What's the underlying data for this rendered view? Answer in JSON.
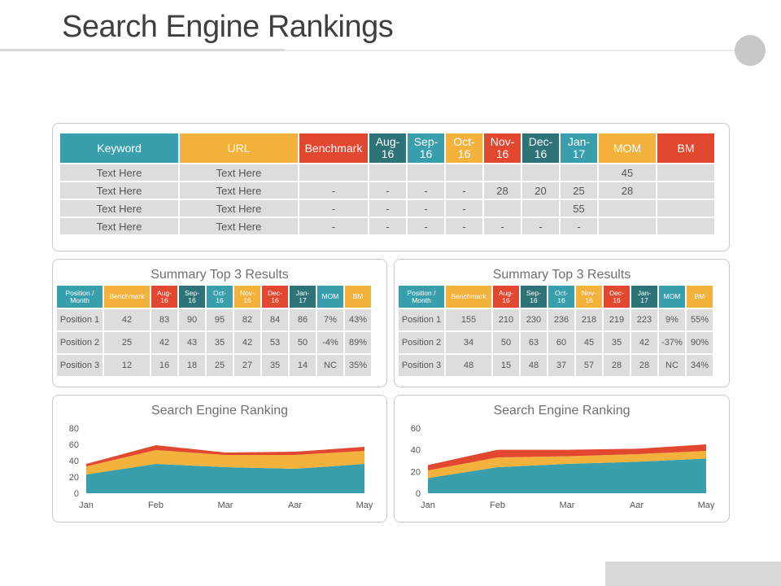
{
  "page": {
    "title": "Search Engine Rankings"
  },
  "main_table": {
    "headers": [
      {
        "label": "Keyword",
        "color": "teal"
      },
      {
        "label": "URL",
        "color": "yellow"
      },
      {
        "label": "Benchmark",
        "color": "red"
      },
      {
        "label": "Aug-\n16",
        "color": "dteal"
      },
      {
        "label": "Sep-\n16",
        "color": "teal"
      },
      {
        "label": "Oct-\n16",
        "color": "yellow"
      },
      {
        "label": "Nov-\n16",
        "color": "red"
      },
      {
        "label": "Dec-\n16",
        "color": "dteal"
      },
      {
        "label": "Jan-\n17",
        "color": "teal"
      },
      {
        "label": "MOM",
        "color": "yellow"
      },
      {
        "label": "BM",
        "color": "red"
      }
    ],
    "rows": [
      [
        "Text Here",
        "Text Here",
        "",
        "",
        "",
        "",
        "",
        "",
        "",
        "45",
        ""
      ],
      [
        "Text Here",
        "Text Here",
        "-",
        "-",
        "-",
        "-",
        "28",
        "20",
        "25",
        "28",
        ""
      ],
      [
        "Text Here",
        "Text Here",
        "-",
        "-",
        "-",
        "-",
        "",
        "",
        "55",
        "",
        ""
      ],
      [
        "Text Here",
        "Text Here",
        "-",
        "-",
        "-",
        "-",
        "-",
        "-",
        "-",
        "",
        ""
      ]
    ]
  },
  "summary_tables": [
    {
      "title": "Summary Top 3 Results",
      "headers": [
        {
          "label": "Position /\nMonth",
          "color": "teal"
        },
        {
          "label": "Benchmark",
          "color": "yellow"
        },
        {
          "label": "Aug-\n16",
          "color": "red"
        },
        {
          "label": "Sep-\n16",
          "color": "dteal"
        },
        {
          "label": "Oct-\n16",
          "color": "teal"
        },
        {
          "label": "Nov-\n16",
          "color": "yellow"
        },
        {
          "label": "Dec-\n16",
          "color": "red"
        },
        {
          "label": "Jan-\n17",
          "color": "dteal"
        },
        {
          "label": "MOM",
          "color": "teal"
        },
        {
          "label": "BM",
          "color": "yellow"
        }
      ],
      "rows": [
        [
          "Position 1",
          "42",
          "83",
          "90",
          "95",
          "82",
          "84",
          "86",
          "7%",
          "43%"
        ],
        [
          "Position 2",
          "25",
          "42",
          "43",
          "35",
          "42",
          "53",
          "50",
          "-4%",
          "89%"
        ],
        [
          "Position 3",
          "12",
          "16",
          "18",
          "25",
          "27",
          "35",
          "14",
          "NC",
          "35%"
        ]
      ]
    },
    {
      "title": "Summary Top 3 Results",
      "headers": [
        {
          "label": "Position /\nMonth",
          "color": "teal"
        },
        {
          "label": "Benchmark",
          "color": "yellow"
        },
        {
          "label": "Aug-\n16",
          "color": "red"
        },
        {
          "label": "Sep-\n16",
          "color": "dteal"
        },
        {
          "label": "Oct-\n16",
          "color": "teal"
        },
        {
          "label": "Nov-\n16",
          "color": "yellow"
        },
        {
          "label": "Dec-\n16",
          "color": "red"
        },
        {
          "label": "Jan-\n17",
          "color": "dteal"
        },
        {
          "label": "MOM",
          "color": "teal"
        },
        {
          "label": "BM",
          "color": "yellow"
        }
      ],
      "rows": [
        [
          "Position 1",
          "155",
          "210",
          "230",
          "236",
          "218",
          "219",
          "223",
          "9%",
          "55%"
        ],
        [
          "Position 2",
          "34",
          "50",
          "63",
          "60",
          "45",
          "35",
          "42",
          "-37%",
          "90%"
        ],
        [
          "Position 3",
          "48",
          "15",
          "48",
          "37",
          "57",
          "28",
          "28",
          "NC",
          "34%"
        ]
      ]
    }
  ],
  "colors": {
    "teal": "#3a9fac",
    "yellow": "#f2b23c",
    "red": "#e2472f",
    "dteal": "#2e7377"
  },
  "chart_data": [
    {
      "type": "area",
      "stacked": true,
      "title": "Search Engine Ranking",
      "categories": [
        "Jan",
        "Feb",
        "Mar",
        "Aar",
        "May"
      ],
      "ylim": [
        0,
        80
      ],
      "yticks": [
        0,
        20,
        40,
        60,
        80
      ],
      "grid": false,
      "series": [
        {
          "color": "#3a9fac",
          "values": [
            23,
            36,
            32,
            30,
            36
          ]
        },
        {
          "color": "#f2b23c",
          "values": [
            10,
            17,
            15,
            17,
            16
          ]
        },
        {
          "color": "#e2472f",
          "values": [
            3,
            6,
            3,
            4,
            5
          ]
        }
      ]
    },
    {
      "type": "area",
      "stacked": true,
      "title": "Search Engine Ranking",
      "categories": [
        "Jan",
        "Feb",
        "Mar",
        "Aar",
        "May"
      ],
      "ylim": [
        0,
        60
      ],
      "yticks": [
        0,
        20,
        40,
        60
      ],
      "grid": false,
      "series": [
        {
          "color": "#3a9fac",
          "values": [
            14,
            24,
            27,
            29,
            32
          ]
        },
        {
          "color": "#f2b23c",
          "values": [
            7,
            9,
            7,
            7,
            7
          ]
        },
        {
          "color": "#e2472f",
          "values": [
            5,
            7,
            6,
            5,
            6
          ]
        }
      ]
    }
  ]
}
